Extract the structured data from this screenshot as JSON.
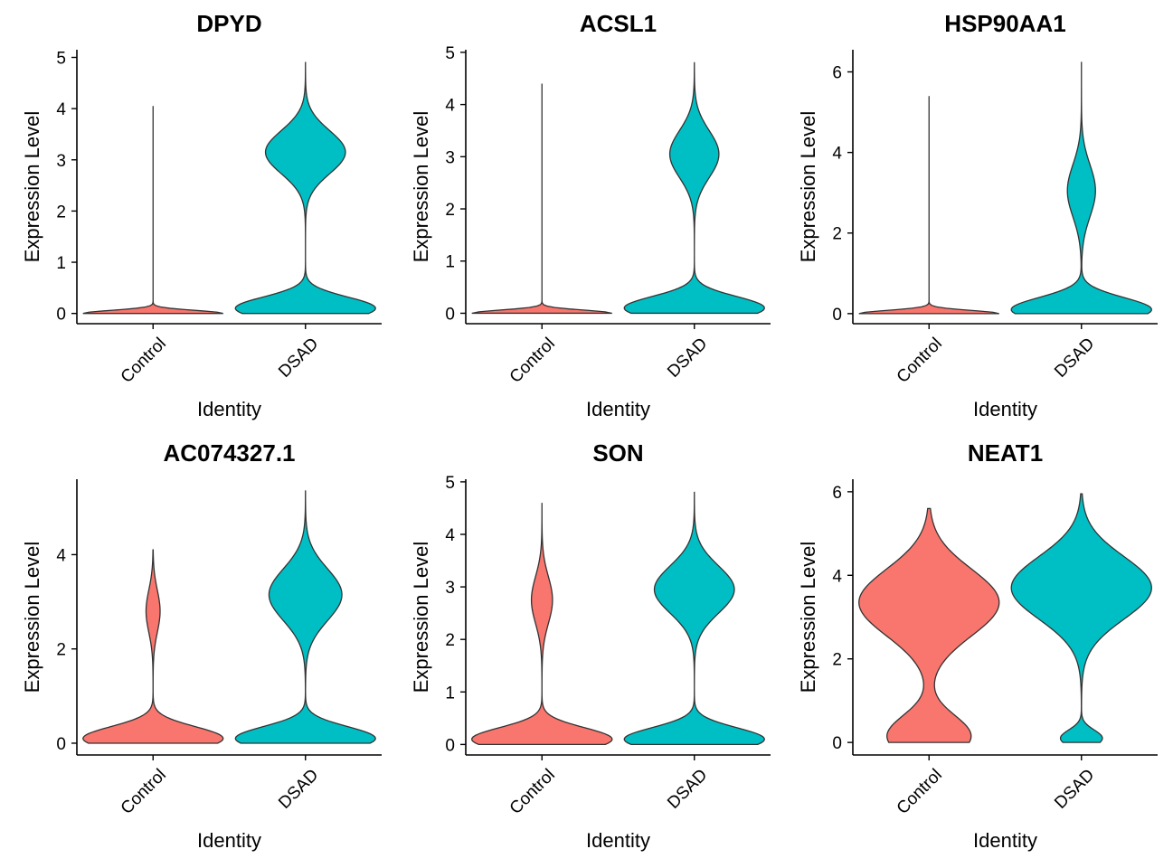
{
  "chart_data": [
    {
      "type": "violin",
      "title": "DPYD",
      "xlabel": "Identity",
      "ylabel": "Expression Level",
      "categories": [
        "Control",
        "DSAD"
      ],
      "ylim": [
        -0.2,
        5.15
      ],
      "yticks": [
        0,
        1,
        2,
        3,
        4,
        5
      ],
      "ytick_labels": [
        "0",
        "1",
        "2",
        "3",
        "4",
        "5"
      ],
      "series": [
        {
          "name": "Control",
          "color": "#F8766D",
          "max": 4.05,
          "modes": [
            {
              "center": 0,
              "sd": 0.06,
              "weight": 1.0
            }
          ]
        },
        {
          "name": "DSAD",
          "color": "#00BFC4",
          "max": 4.9,
          "modes": [
            {
              "center": 0.1,
              "sd": 0.22,
              "weight": 1.0
            },
            {
              "center": 3.15,
              "sd": 0.42,
              "weight": 0.57
            }
          ]
        }
      ]
    },
    {
      "type": "violin",
      "title": "ACSL1",
      "xlabel": "Identity",
      "ylabel": "Expression Level",
      "categories": [
        "Control",
        "DSAD"
      ],
      "ylim": [
        -0.2,
        5.05
      ],
      "yticks": [
        0,
        1,
        2,
        3,
        4,
        5
      ],
      "ytick_labels": [
        "0",
        "1",
        "2",
        "3",
        "4",
        "5"
      ],
      "series": [
        {
          "name": "Control",
          "color": "#F8766D",
          "max": 4.4,
          "modes": [
            {
              "center": 0,
              "sd": 0.06,
              "weight": 1.0
            }
          ]
        },
        {
          "name": "DSAD",
          "color": "#00BFC4",
          "max": 4.8,
          "modes": [
            {
              "center": 0.1,
              "sd": 0.22,
              "weight": 1.0
            },
            {
              "center": 3.05,
              "sd": 0.45,
              "weight": 0.35
            }
          ]
        }
      ]
    },
    {
      "type": "violin",
      "title": "HSP90AA1",
      "xlabel": "Identity",
      "ylabel": "Expression Level",
      "categories": [
        "Control",
        "DSAD"
      ],
      "ylim": [
        -0.25,
        6.55
      ],
      "yticks": [
        0,
        2,
        4,
        6
      ],
      "ytick_labels": [
        "0",
        "2",
        "4",
        "6"
      ],
      "series": [
        {
          "name": "Control",
          "color": "#F8766D",
          "max": 5.4,
          "modes": [
            {
              "center": 0,
              "sd": 0.08,
              "weight": 1.0
            }
          ]
        },
        {
          "name": "DSAD",
          "color": "#00BFC4",
          "max": 6.25,
          "modes": [
            {
              "center": 0.1,
              "sd": 0.3,
              "weight": 1.0
            },
            {
              "center": 3.05,
              "sd": 0.65,
              "weight": 0.2
            }
          ]
        }
      ]
    },
    {
      "type": "violin",
      "title": "AC074327.1",
      "xlabel": "Identity",
      "ylabel": "Expression Level",
      "categories": [
        "Control",
        "DSAD"
      ],
      "ylim": [
        -0.25,
        5.6
      ],
      "yticks": [
        0,
        2,
        4
      ],
      "ytick_labels": [
        "0",
        "2",
        "4"
      ],
      "series": [
        {
          "name": "Control",
          "color": "#F8766D",
          "max": 4.1,
          "modes": [
            {
              "center": 0.1,
              "sd": 0.25,
              "weight": 1.0
            },
            {
              "center": 2.8,
              "sd": 0.45,
              "weight": 0.1
            }
          ]
        },
        {
          "name": "DSAD",
          "color": "#00BFC4",
          "max": 5.35,
          "modes": [
            {
              "center": 0.1,
              "sd": 0.25,
              "weight": 1.0
            },
            {
              "center": 3.15,
              "sd": 0.55,
              "weight": 0.52
            }
          ]
        }
      ]
    },
    {
      "type": "violin",
      "title": "SON",
      "xlabel": "Identity",
      "ylabel": "Expression Level",
      "categories": [
        "Control",
        "DSAD"
      ],
      "ylim": [
        -0.2,
        5.05
      ],
      "yticks": [
        0,
        1,
        2,
        3,
        4,
        5
      ],
      "ytick_labels": [
        "0",
        "1",
        "2",
        "3",
        "4",
        "5"
      ],
      "series": [
        {
          "name": "Control",
          "color": "#F8766D",
          "max": 4.6,
          "modes": [
            {
              "center": 0.1,
              "sd": 0.22,
              "weight": 1.0
            },
            {
              "center": 2.75,
              "sd": 0.45,
              "weight": 0.15
            }
          ]
        },
        {
          "name": "DSAD",
          "color": "#00BFC4",
          "max": 4.8,
          "modes": [
            {
              "center": 0.1,
              "sd": 0.22,
              "weight": 1.0
            },
            {
              "center": 2.95,
              "sd": 0.45,
              "weight": 0.57
            }
          ]
        }
      ]
    },
    {
      "type": "violin",
      "title": "NEAT1",
      "xlabel": "Identity",
      "ylabel": "Expression Level",
      "categories": [
        "Control",
        "DSAD"
      ],
      "ylim": [
        -0.3,
        6.3
      ],
      "yticks": [
        0,
        2,
        4,
        6
      ],
      "ytick_labels": [
        "0",
        "2",
        "4",
        "6"
      ],
      "series": [
        {
          "name": "Control",
          "color": "#F8766D",
          "max": 5.6,
          "modes": [
            {
              "center": 0.15,
              "sd": 0.5,
              "weight": 0.6
            },
            {
              "center": 3.35,
              "sd": 0.8,
              "weight": 1.0
            }
          ]
        },
        {
          "name": "DSAD",
          "color": "#00BFC4",
          "max": 5.95,
          "modes": [
            {
              "center": 0.1,
              "sd": 0.2,
              "weight": 0.3
            },
            {
              "center": 3.7,
              "sd": 0.75,
              "weight": 1.0
            }
          ]
        }
      ]
    }
  ]
}
